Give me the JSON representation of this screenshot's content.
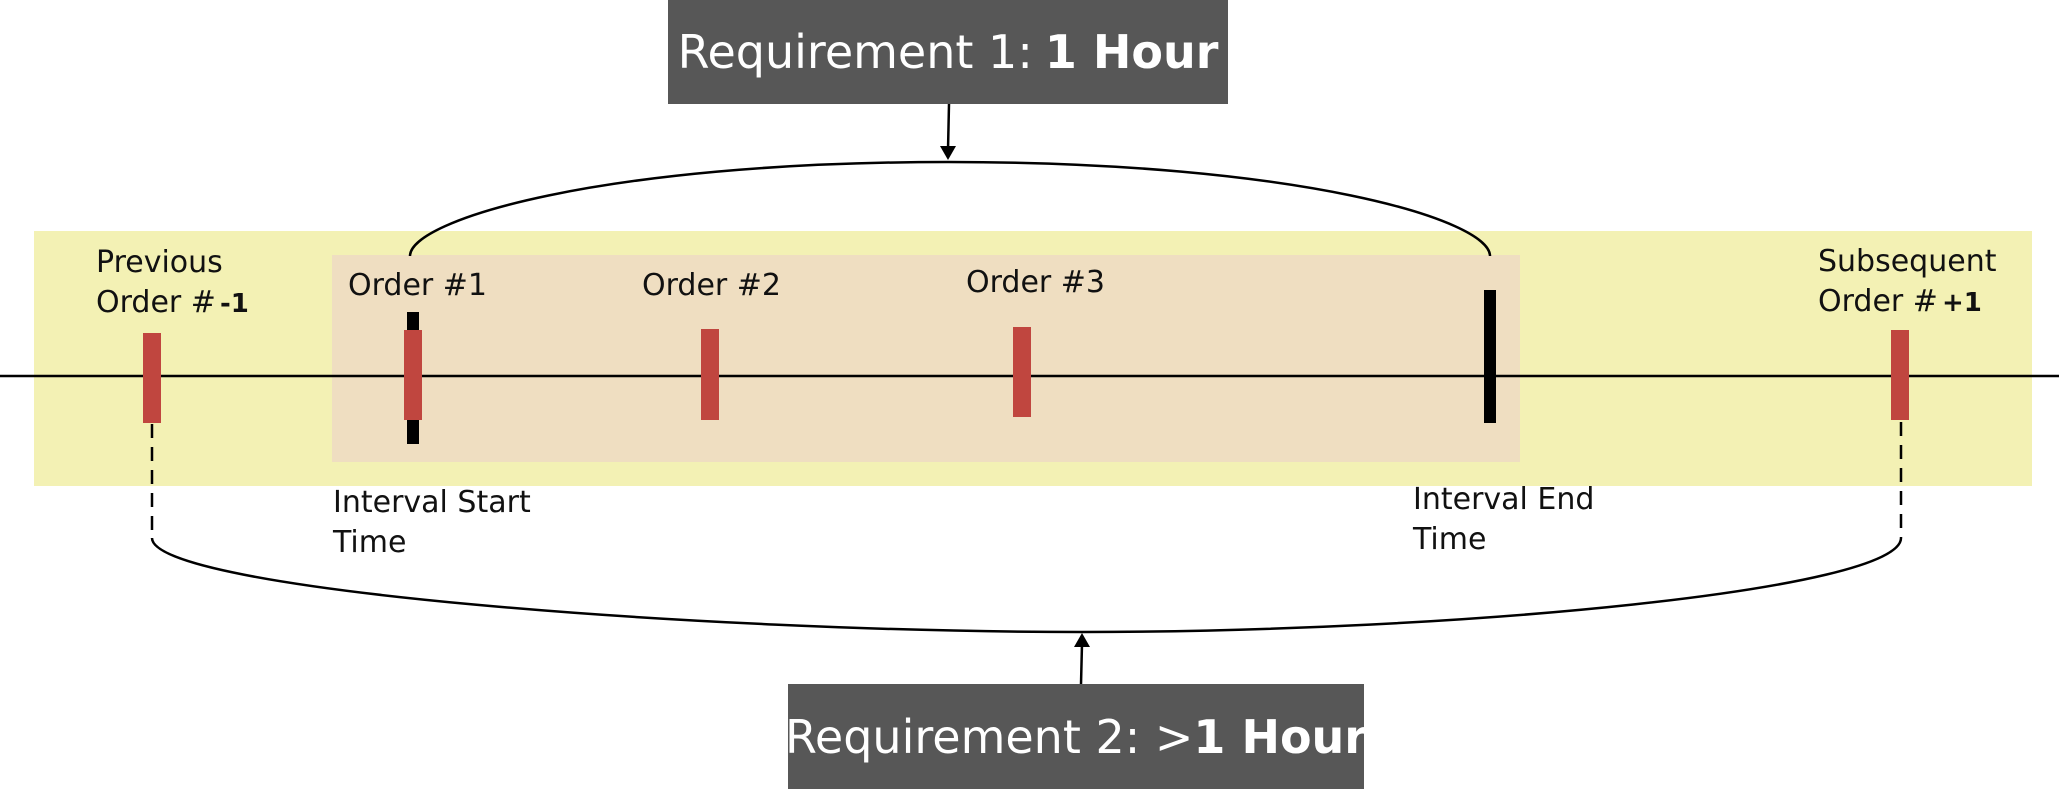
{
  "requirement_1": {
    "prefix": "Requirement 1:",
    "emphasis": "1 Hour"
  },
  "requirement_2": {
    "prefix": "Requirement 2: >",
    "emphasis": "1 Hour"
  },
  "labels": {
    "previous_line1": "Previous",
    "previous_line2": "Order #",
    "previous_suffix": "-1",
    "subsequent_line1": "Subsequent",
    "subsequent_line2": "Order #",
    "subsequent_suffix": "+1",
    "order1": "Order #1",
    "order2": "Order #2",
    "order3": "Order #3",
    "interval_start_line1": "Interval Start",
    "interval_start_line2": "Time",
    "interval_end_line1": "Interval End",
    "interval_end_line2": "Time"
  },
  "colors": {
    "order_marker": "#c0463f",
    "interval_marker": "#000000",
    "outer_band": "#f3f1b4",
    "inner_band": "#efdec1",
    "requirement_box": "#575757"
  }
}
